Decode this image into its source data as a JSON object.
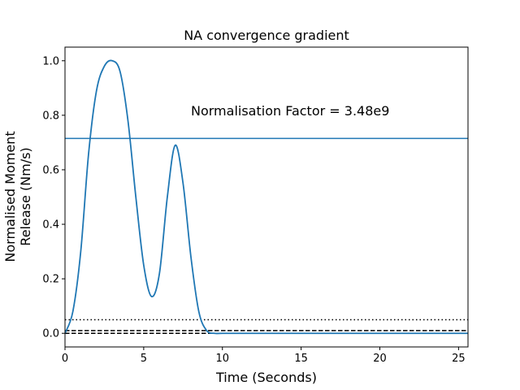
{
  "chart_data": {
    "type": "line",
    "title": "NA convergence gradient",
    "xlabel": "Time (Seconds)",
    "ylabel_lines": [
      "Normalised Moment",
      "Release (Nm/s)"
    ],
    "annotation": "Normalisation Factor = 3.48e9",
    "xlim": [
      0,
      25.6
    ],
    "ylim": [
      -0.05,
      1.05
    ],
    "x_ticks": [
      0,
      5,
      10,
      15,
      20,
      25
    ],
    "x_tick_labels": [
      "0",
      "5",
      "10",
      "15",
      "20",
      "25"
    ],
    "y_ticks": [
      0.0,
      0.2,
      0.4,
      0.6,
      0.8,
      1.0
    ],
    "y_tick_labels": [
      "0.0",
      "0.2",
      "0.4",
      "0.6",
      "0.8",
      "1.0"
    ],
    "grid": false,
    "series": [
      {
        "style": "solid",
        "color": "#1f77b4",
        "x": [
          0,
          0.5,
          1,
          1.5,
          2,
          2.5,
          3,
          3.5,
          4,
          4.5,
          5,
          5.5,
          6,
          6.5,
          7,
          7.5,
          8,
          8.5,
          9,
          9.5,
          10,
          12,
          15,
          20,
          25.6
        ],
        "y": [
          0.0,
          0.08,
          0.3,
          0.66,
          0.89,
          0.98,
          1.0,
          0.96,
          0.78,
          0.5,
          0.25,
          0.135,
          0.22,
          0.5,
          0.69,
          0.55,
          0.28,
          0.08,
          0.01,
          0.0,
          0.0,
          0.0,
          0.0,
          0.0,
          0.0
        ]
      }
    ],
    "hlines": [
      {
        "y": 0.715,
        "style": "solid",
        "color": "#1f77b4"
      },
      {
        "y": 0.05,
        "style": "dotted",
        "color": "#000000"
      },
      {
        "y": 0.01,
        "style": "dashed",
        "color": "#000000"
      },
      {
        "y": 0.0,
        "style": "dashed",
        "color": "#000000"
      }
    ]
  }
}
